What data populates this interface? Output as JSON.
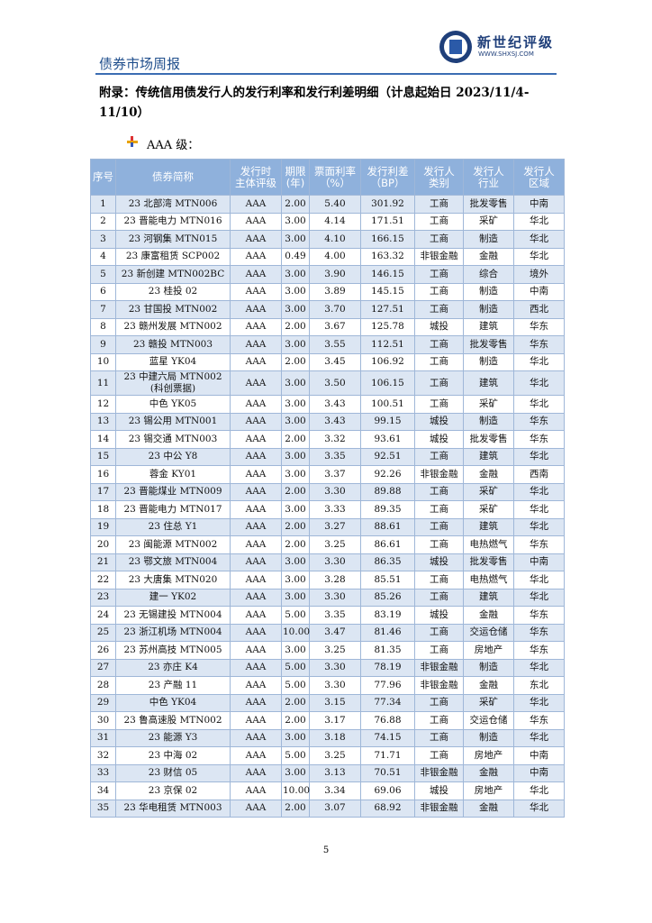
{
  "header": {
    "title": "债券市场周报",
    "brand": "新世纪评级",
    "website": "WWW.SHXSJ.COM"
  },
  "appendix_title": "附录：传统信用债发行人的发行利率和发行利差明细（计息起始日 2023/11/4-11/10）",
  "section": "AAA 级：",
  "table": {
    "header": [
      [
        "序号"
      ],
      [
        "债券简称"
      ],
      [
        "发行时",
        "主体评级"
      ],
      [
        "期限",
        "(年)"
      ],
      [
        "票面利率",
        "（%）"
      ],
      [
        "发行利差",
        "（BP）"
      ],
      [
        "发行人",
        "类别"
      ],
      [
        "发行人",
        "行业"
      ],
      [
        "发行人",
        "区域"
      ]
    ],
    "rows": [
      [
        "1",
        "23 北部湾 MTN006",
        "AAA",
        "2.00",
        "5.40",
        "301.92",
        "工商",
        "批发零售",
        "中南"
      ],
      [
        "2",
        "23 晋能电力 MTN016",
        "AAA",
        "3.00",
        "4.14",
        "171.51",
        "工商",
        "采矿",
        "华北"
      ],
      [
        "3",
        "23 河钢集 MTN015",
        "AAA",
        "3.00",
        "4.10",
        "166.15",
        "工商",
        "制造",
        "华北"
      ],
      [
        "4",
        "23 康富租赁 SCP002",
        "AAA",
        "0.49",
        "4.00",
        "163.32",
        "非银金融",
        "金融",
        "华北"
      ],
      [
        "5",
        "23 新创建 MTN002BC",
        "AAA",
        "3.00",
        "3.90",
        "146.15",
        "工商",
        "综合",
        "境外"
      ],
      [
        "6",
        "23 桂投 02",
        "AAA",
        "3.00",
        "3.89",
        "145.15",
        "工商",
        "制造",
        "中南"
      ],
      [
        "7",
        "23 甘国投 MTN002",
        "AAA",
        "3.00",
        "3.70",
        "127.51",
        "工商",
        "制造",
        "西北"
      ],
      [
        "8",
        "23 赣州发展 MTN002",
        "AAA",
        "2.00",
        "3.67",
        "125.78",
        "城投",
        "建筑",
        "华东"
      ],
      [
        "9",
        "23 赣投 MTN003",
        "AAA",
        "3.00",
        "3.55",
        "112.51",
        "工商",
        "批发零售",
        "华东"
      ],
      [
        "10",
        "蓝星 YK04",
        "AAA",
        "2.00",
        "3.45",
        "106.92",
        "工商",
        "制造",
        "华北"
      ],
      [
        "11",
        "23 中建六局 MTN002 (科创票据)",
        "AAA",
        "3.00",
        "3.50",
        "106.15",
        "工商",
        "建筑",
        "华北"
      ],
      [
        "12",
        "中色 YK05",
        "AAA",
        "3.00",
        "3.43",
        "100.51",
        "工商",
        "采矿",
        "华北"
      ],
      [
        "13",
        "23 锡公用 MTN001",
        "AAA",
        "3.00",
        "3.43",
        "99.15",
        "城投",
        "制造",
        "华东"
      ],
      [
        "14",
        "23 锡交通 MTN003",
        "AAA",
        "2.00",
        "3.32",
        "93.61",
        "城投",
        "批发零售",
        "华东"
      ],
      [
        "15",
        "23 中公 Y8",
        "AAA",
        "3.00",
        "3.35",
        "92.51",
        "工商",
        "建筑",
        "华北"
      ],
      [
        "16",
        "蓉金 KY01",
        "AAA",
        "3.00",
        "3.37",
        "92.26",
        "非银金融",
        "金融",
        "西南"
      ],
      [
        "17",
        "23 晋能煤业 MTN009",
        "AAA",
        "2.00",
        "3.30",
        "89.88",
        "工商",
        "采矿",
        "华北"
      ],
      [
        "18",
        "23 晋能电力 MTN017",
        "AAA",
        "3.00",
        "3.33",
        "89.35",
        "工商",
        "采矿",
        "华北"
      ],
      [
        "19",
        "23 住总 Y1",
        "AAA",
        "2.00",
        "3.27",
        "88.61",
        "工商",
        "建筑",
        "华北"
      ],
      [
        "20",
        "23 闽能源 MTN002",
        "AAA",
        "2.00",
        "3.25",
        "86.61",
        "工商",
        "电热燃气",
        "华东"
      ],
      [
        "21",
        "23 鄂文旅 MTN004",
        "AAA",
        "3.00",
        "3.30",
        "86.35",
        "城投",
        "批发零售",
        "中南"
      ],
      [
        "22",
        "23 大唐集 MTN020",
        "AAA",
        "3.00",
        "3.28",
        "85.51",
        "工商",
        "电热燃气",
        "华北"
      ],
      [
        "23",
        "建一 YK02",
        "AAA",
        "3.00",
        "3.30",
        "85.26",
        "工商",
        "建筑",
        "华北"
      ],
      [
        "24",
        "23 无锡建投 MTN004",
        "AAA",
        "5.00",
        "3.35",
        "83.19",
        "城投",
        "金融",
        "华东"
      ],
      [
        "25",
        "23 浙江机场 MTN004",
        "AAA",
        "10.00",
        "3.47",
        "81.46",
        "工商",
        "交运仓储",
        "华东"
      ],
      [
        "26",
        "23 苏州高技 MTN005",
        "AAA",
        "3.00",
        "3.25",
        "81.35",
        "工商",
        "房地产",
        "华东"
      ],
      [
        "27",
        "23 亦庄 K4",
        "AAA",
        "5.00",
        "3.30",
        "78.19",
        "非银金融",
        "制造",
        "华北"
      ],
      [
        "28",
        "23 产融 11",
        "AAA",
        "5.00",
        "3.30",
        "77.96",
        "非银金融",
        "金融",
        "东北"
      ],
      [
        "29",
        "中色 YK04",
        "AAA",
        "2.00",
        "3.15",
        "77.34",
        "工商",
        "采矿",
        "华北"
      ],
      [
        "30",
        "23 鲁高速股 MTN002",
        "AAA",
        "2.00",
        "3.17",
        "76.88",
        "工商",
        "交运仓储",
        "华东"
      ],
      [
        "31",
        "23 能源 Y3",
        "AAA",
        "3.00",
        "3.18",
        "74.15",
        "工商",
        "制造",
        "华北"
      ],
      [
        "32",
        "23 中海 02",
        "AAA",
        "5.00",
        "3.25",
        "71.71",
        "工商",
        "房地产",
        "中南"
      ],
      [
        "33",
        "23 财信 05",
        "AAA",
        "3.00",
        "3.13",
        "70.51",
        "非银金融",
        "金融",
        "中南"
      ],
      [
        "34",
        "23 京保 02",
        "AAA",
        "10.00",
        "3.34",
        "69.06",
        "城投",
        "房地产",
        "华北"
      ],
      [
        "35",
        "23 华电租赁 MTN003",
        "AAA",
        "2.00",
        "3.07",
        "68.92",
        "非银金融",
        "金融",
        "华北"
      ]
    ]
  },
  "page_number": "5"
}
